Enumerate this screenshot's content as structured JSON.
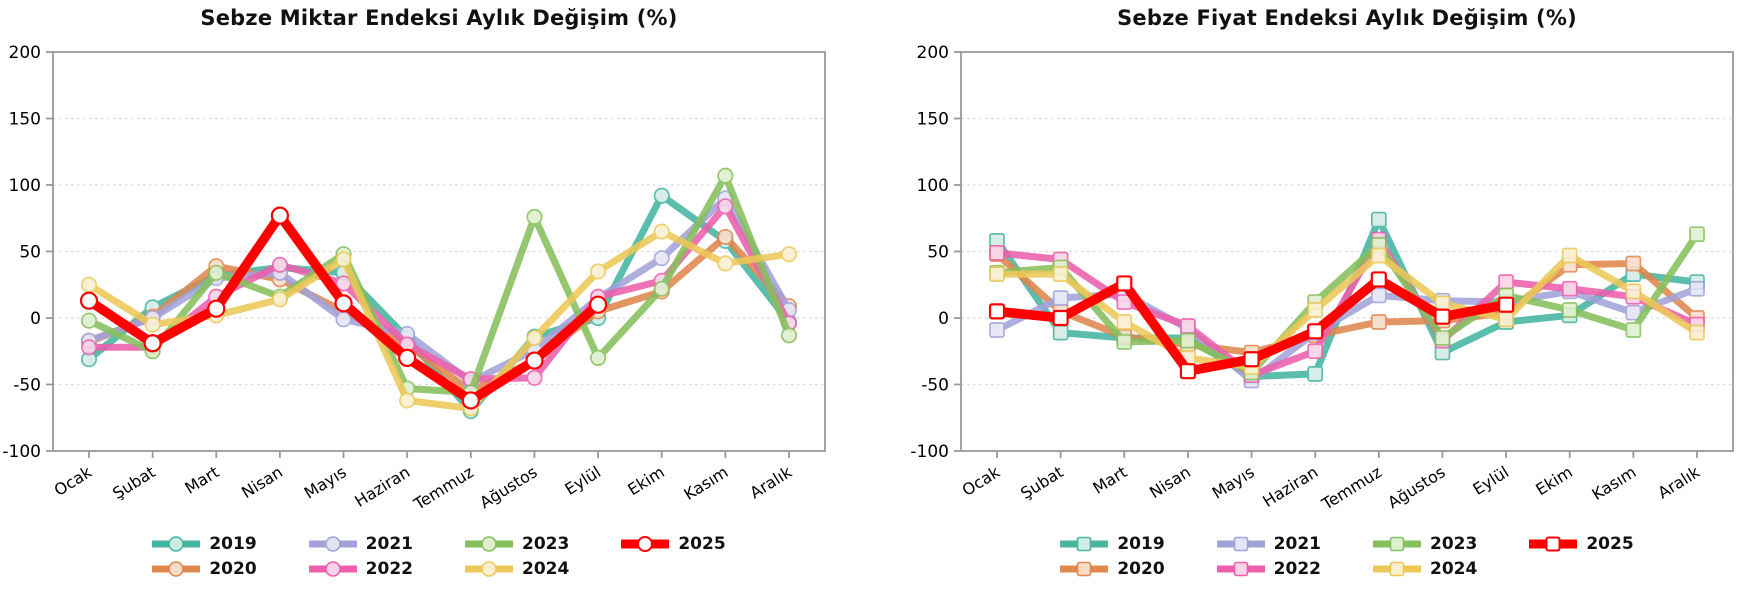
{
  "chart_data": [
    {
      "type": "line",
      "title": "Sebze Miktar Endeksi Aylık Değişim (%)",
      "xlabel": "",
      "ylabel": "",
      "ylim": [
        -100,
        200
      ],
      "yticks": [
        -100,
        -50,
        0,
        50,
        100,
        150,
        200
      ],
      "grid": "dashed-horizontal",
      "legend_position": "bottom",
      "marker": "circle",
      "months": [
        "Ocak",
        "Şubat",
        "Mart",
        "Nisan",
        "Mayıs",
        "Haziran",
        "Temmuz",
        "Ağustos",
        "Eylül",
        "Ekim",
        "Kasım",
        "Aralık"
      ],
      "series": [
        {
          "name": "2019",
          "color": "#45b5a0",
          "fill": "#d2ece5",
          "values": [
            -31,
            8,
            32,
            38,
            34,
            -15,
            -70,
            -14,
            0,
            92,
            58,
            -3
          ]
        },
        {
          "name": "2020",
          "color": "#e0884e",
          "fill": "#f6dcc7",
          "values": [
            -18,
            1,
            39,
            29,
            5,
            -20,
            -55,
            -32,
            5,
            20,
            61,
            9
          ]
        },
        {
          "name": "2021",
          "color": "#a2a2da",
          "fill": "#e4e4f5",
          "values": [
            -17,
            0,
            30,
            34,
            -1,
            -12,
            -48,
            -24,
            15,
            45,
            90,
            6
          ]
        },
        {
          "name": "2022",
          "color": "#ec5fad",
          "fill": "#f9d3e8",
          "values": [
            -22,
            -22,
            16,
            40,
            26,
            -20,
            -46,
            -45,
            16,
            28,
            84,
            -4
          ]
        },
        {
          "name": "2023",
          "color": "#86c05c",
          "fill": "#def0cd",
          "values": [
            -2,
            -25,
            34,
            16,
            48,
            -53,
            -56,
            76,
            -30,
            22,
            107,
            -13
          ]
        },
        {
          "name": "2024",
          "color": "#edc858",
          "fill": "#faf0d0",
          "values": [
            25,
            -5,
            2,
            14,
            44,
            -62,
            -68,
            -15,
            35,
            65,
            41,
            48
          ]
        },
        {
          "name": "2025",
          "color": "#ff0000",
          "fill": "#ffffff",
          "values": [
            13,
            -19,
            7,
            77,
            11,
            -30,
            -62,
            -32,
            10,
            null,
            null,
            null
          ]
        }
      ]
    },
    {
      "type": "line",
      "title": "Sebze Fiyat Endeksi Aylık Değişim (%)",
      "xlabel": "",
      "ylabel": "",
      "ylim": [
        -100,
        200
      ],
      "yticks": [
        -100,
        -50,
        0,
        50,
        100,
        150,
        200
      ],
      "grid": "dashed-horizontal",
      "legend_position": "bottom",
      "marker": "square",
      "months": [
        "Ocak",
        "Şubat",
        "Mart",
        "Nisan",
        "Mayıs",
        "Haziran",
        "Temmuz",
        "Ağustos",
        "Eylül",
        "Ekim",
        "Kasım",
        "Aralık"
      ],
      "series": [
        {
          "name": "2019",
          "color": "#45b5a0",
          "fill": "#d2ece5",
          "values": [
            58,
            -11,
            -15,
            -15,
            -44,
            -42,
            74,
            -26,
            -3,
            2,
            33,
            27
          ]
        },
        {
          "name": "2020",
          "color": "#e0884e",
          "fill": "#f6dcc7",
          "values": [
            48,
            5,
            -14,
            -20,
            -26,
            -13,
            -3,
            -2,
            4,
            40,
            41,
            0
          ]
        },
        {
          "name": "2021",
          "color": "#a2a2da",
          "fill": "#e4e4f5",
          "values": [
            -9,
            15,
            18,
            -8,
            -47,
            -11,
            17,
            13,
            12,
            20,
            4,
            22
          ]
        },
        {
          "name": "2022",
          "color": "#ec5fad",
          "fill": "#f9d3e8",
          "values": [
            49,
            44,
            12,
            -6,
            -43,
            -25,
            59,
            -17,
            27,
            22,
            16,
            -5
          ]
        },
        {
          "name": "2023",
          "color": "#86c05c",
          "fill": "#def0cd",
          "values": [
            34,
            38,
            -18,
            -17,
            -41,
            12,
            55,
            -15,
            17,
            6,
            -9,
            63
          ]
        },
        {
          "name": "2024",
          "color": "#edc858",
          "fill": "#faf0d0",
          "values": [
            33,
            33,
            -3,
            -30,
            -37,
            6,
            47,
            11,
            -1,
            47,
            20,
            -11
          ]
        },
        {
          "name": "2025",
          "color": "#ff0000",
          "fill": "#ffffff",
          "values": [
            5,
            0,
            26,
            -40,
            -31,
            -10,
            29,
            1,
            10,
            null,
            null,
            null
          ]
        }
      ]
    }
  ],
  "style": {
    "axis_color": "#999999",
    "grid_color": "#d9d9d9",
    "tick_label_color": "#000000"
  }
}
